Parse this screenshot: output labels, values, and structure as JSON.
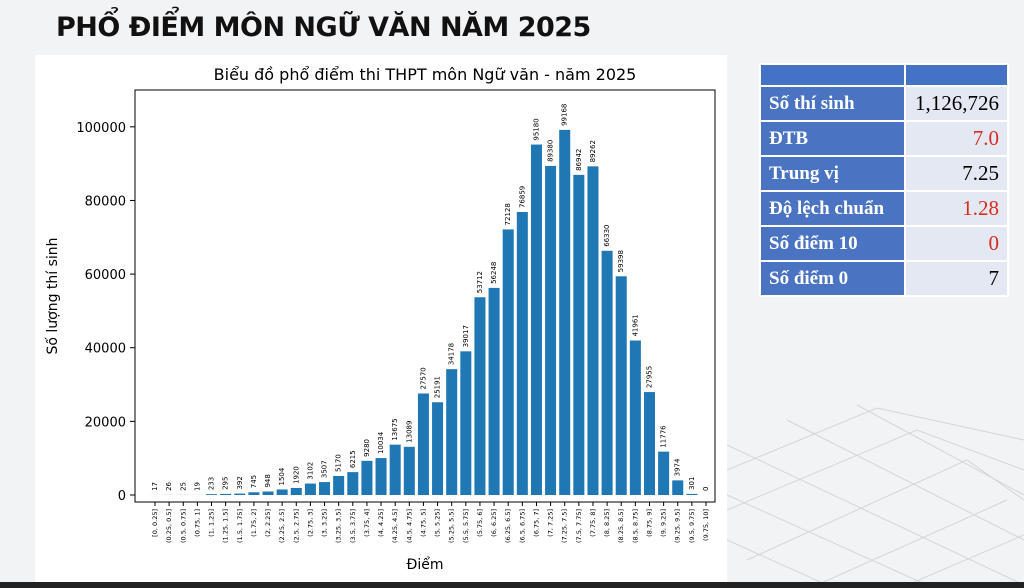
{
  "slide_title": "PHỔ ĐIỂM MÔN NGỮ VĂN NĂM 2025",
  "table": {
    "rows": [
      {
        "label": "Số thí sinh",
        "value": "1,126,726",
        "highlight": false
      },
      {
        "label": "ĐTB",
        "value": "7.0",
        "highlight": true
      },
      {
        "label": "Trung vị",
        "value": "7.25",
        "highlight": false
      },
      {
        "label": "Độ lệch chuẩn",
        "value": "1.28",
        "highlight": true
      },
      {
        "label": "Số điểm 10",
        "value": "0",
        "highlight": true
      },
      {
        "label": "Số điểm 0",
        "value": "7",
        "highlight": false
      }
    ]
  },
  "colors": {
    "bar": "#1f77b4",
    "table_header": "#4472c4",
    "table_cell": "#e3e8f3",
    "highlight": "#d62d20"
  },
  "chart_data": {
    "type": "bar",
    "title": "Biểu đồ phổ điểm thi THPT môn Ngữ văn - năm 2025",
    "xlabel": "Điểm",
    "ylabel": "Số lượng thí sinh",
    "ylim": [
      0,
      110000
    ],
    "yticks": [
      0,
      20000,
      40000,
      60000,
      80000,
      100000
    ],
    "grid": false,
    "categories": [
      "[0, 0.25]",
      "(0.25, 0.5]",
      "(0.5, 0.75]",
      "(0.75, 1]",
      "(1, 1.25]",
      "(1.25, 1.5]",
      "(1.5, 1.75]",
      "(1.75, 2]",
      "(2, 2.25]",
      "(2.25, 2.5]",
      "(2.5, 2.75]",
      "(2.75, 3]",
      "(3, 3.25]",
      "(3.25, 3.5]",
      "(3.5, 3.75]",
      "(3.75, 4]",
      "(4, 4.25]",
      "(4.25, 4.5]",
      "(4.5, 4.75]",
      "(4.75, 5]",
      "(5, 5.25]",
      "(5.25, 5.5]",
      "(5.5, 5.75]",
      "(5.75, 6]",
      "(6, 6.25]",
      "(6.25, 6.5]",
      "(6.5, 6.75]",
      "(6.75, 7]",
      "(7, 7.25]",
      "(7.25, 7.5]",
      "(7.5, 7.75]",
      "(7.75, 8]",
      "(8, 8.25]",
      "(8.25, 8.5]",
      "(8.5, 8.75]",
      "(8.75, 9]",
      "(9, 9.25]",
      "(9.25, 9.5]",
      "(9.5, 9.75]",
      "(9.75, 10]"
    ],
    "values": [
      17,
      26,
      25,
      19,
      233,
      295,
      392,
      745,
      948,
      1504,
      1920,
      3102,
      3507,
      5170,
      6215,
      9280,
      10034,
      13675,
      13089,
      27570,
      25191,
      34178,
      39017,
      53712,
      56248,
      72128,
      76859,
      95180,
      89380,
      99168,
      86942,
      89262,
      66330,
      59398,
      41961,
      27955,
      11776,
      3974,
      301,
      0
    ]
  }
}
